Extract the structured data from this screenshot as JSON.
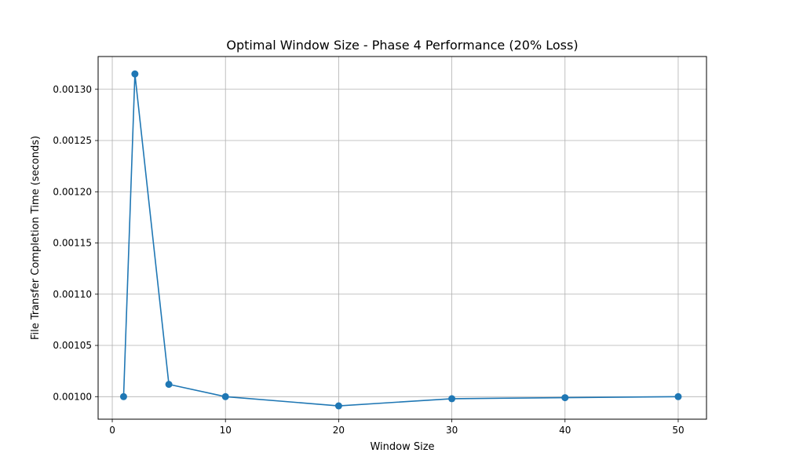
{
  "chart_data": {
    "type": "line",
    "title": "Optimal Window Size - Phase 4 Performance (20% Loss)",
    "xlabel": "Window Size",
    "ylabel": "File Transfer Completion Time (seconds)",
    "xlim": [
      -1.25,
      52.5
    ],
    "ylim": [
      0.000978,
      0.001332
    ],
    "xticks": [
      0,
      10,
      20,
      30,
      40,
      50
    ],
    "xtick_labels": [
      "0",
      "10",
      "20",
      "30",
      "40",
      "50"
    ],
    "yticks": [
      0.001,
      0.00105,
      0.0011,
      0.00115,
      0.0012,
      0.00125,
      0.0013
    ],
    "ytick_labels": [
      "0.00100",
      "0.00105",
      "0.00110",
      "0.00115",
      "0.00120",
      "0.00125",
      "0.00130"
    ],
    "grid": true,
    "series": [
      {
        "x": [
          1,
          2,
          5,
          10,
          20,
          30,
          40,
          50
        ],
        "y": [
          0.001,
          0.001315,
          0.001012,
          0.001,
          0.000991,
          0.000998,
          0.000999,
          0.001
        ],
        "color": "#1f77b4",
        "marker": "circle"
      }
    ]
  }
}
